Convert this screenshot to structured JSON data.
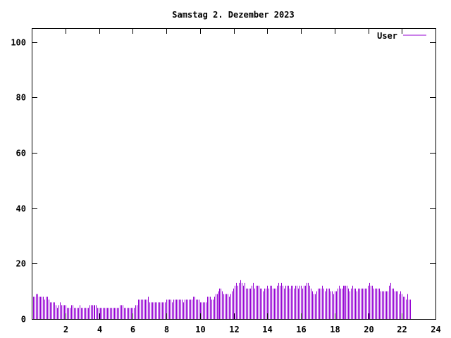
{
  "chart_data": {
    "type": "bar",
    "title": "Samstag 2. Dezember 2023",
    "xlabel": "",
    "ylabel": "",
    "xlim": [
      0,
      24
    ],
    "ylim": [
      0,
      105
    ],
    "x_ticks": [
      2,
      4,
      6,
      8,
      10,
      12,
      14,
      16,
      18,
      20,
      22,
      24
    ],
    "y_ticks": [
      0,
      20,
      40,
      60,
      80,
      100
    ],
    "grid": false,
    "legend_position": "top-right",
    "series": [
      {
        "name": "User",
        "color": "#9400d3",
        "sample_interval_hours": 0.0833,
        "values": [
          8,
          8,
          8,
          9,
          9,
          8,
          8,
          8,
          8,
          7,
          8,
          8,
          7,
          6,
          6,
          6,
          6,
          5,
          4,
          5,
          6,
          5,
          5,
          5,
          5,
          4,
          4,
          4,
          5,
          5,
          4,
          4,
          4,
          4,
          5,
          4,
          4,
          4,
          4,
          4,
          4,
          5,
          5,
          5,
          5,
          5,
          5,
          4,
          4,
          4,
          4,
          4,
          4,
          4,
          4,
          4,
          4,
          4,
          4,
          4,
          4,
          4,
          4,
          5,
          5,
          5,
          4,
          4,
          4,
          4,
          4,
          4,
          4,
          4,
          5,
          5,
          7,
          7,
          7,
          7,
          7,
          7,
          7,
          8,
          6,
          6,
          6,
          6,
          6,
          6,
          6,
          6,
          6,
          6,
          6,
          6,
          7,
          7,
          7,
          7,
          6,
          7,
          7,
          7,
          7,
          7,
          7,
          7,
          6,
          7,
          7,
          7,
          7,
          7,
          7,
          8,
          8,
          7,
          7,
          7,
          6,
          6,
          6,
          6,
          6,
          8,
          8,
          8,
          7,
          7,
          8,
          9,
          9,
          10,
          11,
          11,
          10,
          9,
          9,
          9,
          9,
          8,
          9,
          10,
          11,
          12,
          13,
          12,
          13,
          14,
          13,
          12,
          13,
          11,
          11,
          11,
          11,
          12,
          13,
          11,
          12,
          12,
          12,
          11,
          11,
          10,
          11,
          11,
          12,
          11,
          12,
          12,
          11,
          11,
          11,
          12,
          13,
          12,
          13,
          12,
          11,
          12,
          12,
          12,
          11,
          12,
          12,
          11,
          12,
          12,
          11,
          12,
          12,
          11,
          12,
          12,
          13,
          13,
          12,
          11,
          10,
          9,
          9,
          10,
          11,
          11,
          11,
          12,
          11,
          10,
          11,
          11,
          11,
          10,
          10,
          9,
          10,
          10,
          11,
          12,
          11,
          11,
          12,
          12,
          12,
          12,
          11,
          10,
          11,
          12,
          11,
          11,
          10,
          11,
          11,
          11,
          11,
          11,
          11,
          11,
          12,
          13,
          12,
          12,
          11,
          11,
          11,
          11,
          11,
          10,
          10,
          10,
          10,
          10,
          10,
          12,
          13,
          11,
          11,
          10,
          10,
          10,
          9,
          10,
          9,
          8,
          8,
          7,
          9,
          7,
          7
        ]
      }
    ]
  }
}
